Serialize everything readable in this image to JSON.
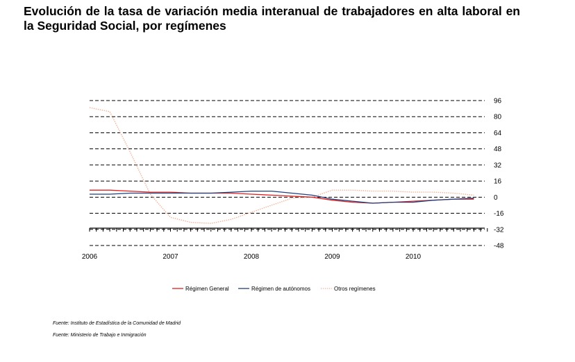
{
  "title": "Evolución de la tasa de variación media interanual de trabajadores en alta laboral en la Seguridad Social, por  regímenes",
  "sources": [
    "Fuente: Instituto de Estadística de la Comunidad de Madrid",
    "Fuente: Ministerio de Trabajo e Inmigración"
  ],
  "chart_data": {
    "type": "line",
    "title": "Evolución de la tasa de variación media interanual de trabajadores en alta laboral en la Seguridad Social, por  regímenes",
    "xlabel": "",
    "ylabel": "",
    "x_ticks": [
      "2006",
      "2007",
      "2008",
      "2009",
      "2010"
    ],
    "y_ticks": [
      96,
      80,
      64,
      48,
      32,
      16,
      0,
      -16,
      -32,
      -48
    ],
    "ylim": [
      -48,
      96
    ],
    "y_axis_side": "right",
    "grid": "horizontal dashed",
    "legend": "bottom",
    "x": [
      "2006-01",
      "2006-04",
      "2006-07",
      "2006-10",
      "2007-01",
      "2007-04",
      "2007-07",
      "2007-10",
      "2008-01",
      "2008-04",
      "2008-07",
      "2008-10",
      "2009-01",
      "2009-04",
      "2009-07",
      "2009-10",
      "2010-01",
      "2010-04",
      "2010-07",
      "2010-10"
    ],
    "series": [
      {
        "name": "Régimen General",
        "color": "#e02020",
        "dash": "solid",
        "values": [
          7,
          7,
          6,
          5,
          5,
          4,
          4,
          4,
          3,
          2,
          1,
          0,
          -3,
          -5,
          -6,
          -5,
          -4,
          -3,
          -2,
          -2
        ]
      },
      {
        "name": "Régimen de autónomos",
        "color": "#1f3f7f",
        "dash": "solid",
        "values": [
          3,
          3,
          4,
          4,
          4,
          4,
          4,
          5,
          6,
          6,
          4,
          2,
          -2,
          -4,
          -6,
          -5,
          -5,
          -3,
          -2,
          -1
        ]
      },
      {
        "name": "Otros regímenes",
        "color": "#f2b49a",
        "dash": "dotted",
        "values": [
          89,
          85,
          45,
          3,
          -20,
          -25,
          -26,
          -22,
          -15,
          -8,
          -1,
          0,
          7,
          7,
          6,
          6,
          5,
          5,
          4,
          2
        ]
      }
    ]
  }
}
